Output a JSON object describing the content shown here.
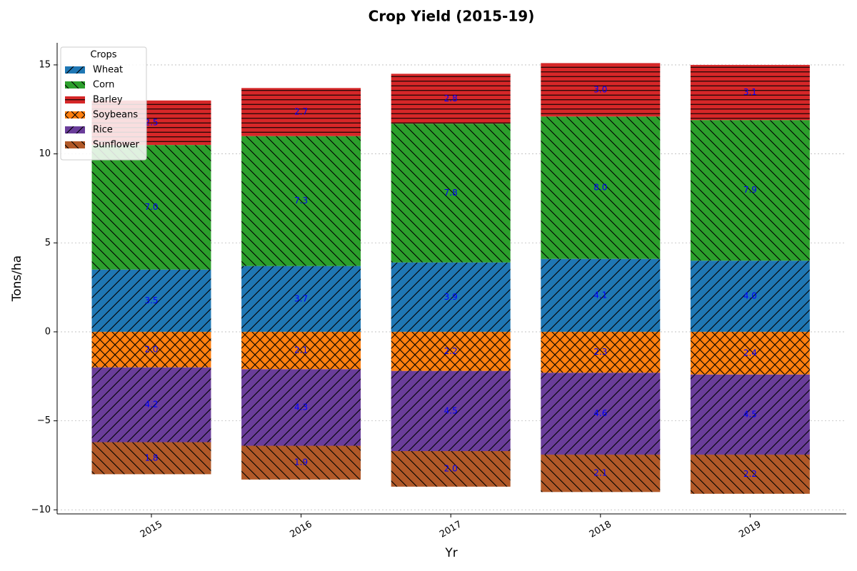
{
  "chart_data": {
    "type": "bar",
    "stacked": true,
    "title": "Crop Yield (2015-19)",
    "x_label": "Yr",
    "y_label": "Tons/ha",
    "categories": [
      "2015",
      "2016",
      "2017",
      "2018",
      "2019"
    ],
    "series": [
      {
        "name": "Wheat",
        "color": "#1f77b4",
        "hatch": "/",
        "values": [
          3.5,
          3.7,
          3.9,
          4.1,
          4.0
        ],
        "value_labels": [
          "3.5",
          "3.7",
          "3.9",
          "4.1",
          "4.0"
        ]
      },
      {
        "name": "Corn",
        "color": "#2ca02c",
        "hatch": "\\",
        "values": [
          7.0,
          7.3,
          7.8,
          8.0,
          7.9
        ],
        "value_labels": [
          "7.0",
          "7.3",
          "7.8",
          "8.0",
          "7.9"
        ]
      },
      {
        "name": "Barley",
        "color": "#d62728",
        "hatch": "-",
        "values": [
          2.5,
          2.7,
          2.8,
          3.0,
          3.1
        ],
        "value_labels": [
          "2.5",
          "2.7",
          "2.8",
          "3.0",
          "3.1"
        ]
      },
      {
        "name": "Soybeans",
        "color": "#ff7f0e",
        "hatch": "x",
        "values": [
          -2.0,
          -2.1,
          -2.2,
          -2.3,
          -2.4
        ],
        "value_labels": [
          "2.0",
          "2.1",
          "2.2",
          "2.3",
          "2.4"
        ]
      },
      {
        "name": "Rice",
        "color": "#6a3d9a",
        "hatch": "/",
        "values": [
          -4.2,
          -4.3,
          -4.5,
          -4.6,
          -4.5
        ],
        "value_labels": [
          "4.2",
          "4.3",
          "4.5",
          "4.6",
          "4.5"
        ]
      },
      {
        "name": "Sunflower",
        "color": "#b15928",
        "hatch": "\\",
        "values": [
          -1.8,
          -1.9,
          -2.0,
          -2.1,
          -2.2
        ],
        "value_labels": [
          "1.8",
          "1.9",
          "2.0",
          "2.1",
          "2.2"
        ]
      }
    ],
    "ylim": [
      -10.23,
      16.24
    ],
    "yticks": [
      {
        "value": -10,
        "label": "−10"
      },
      {
        "value": -5,
        "label": "−5"
      },
      0,
      5,
      10,
      15
    ],
    "grid": true,
    "legend_title": "Crops",
    "legend_position": "upper-left"
  }
}
